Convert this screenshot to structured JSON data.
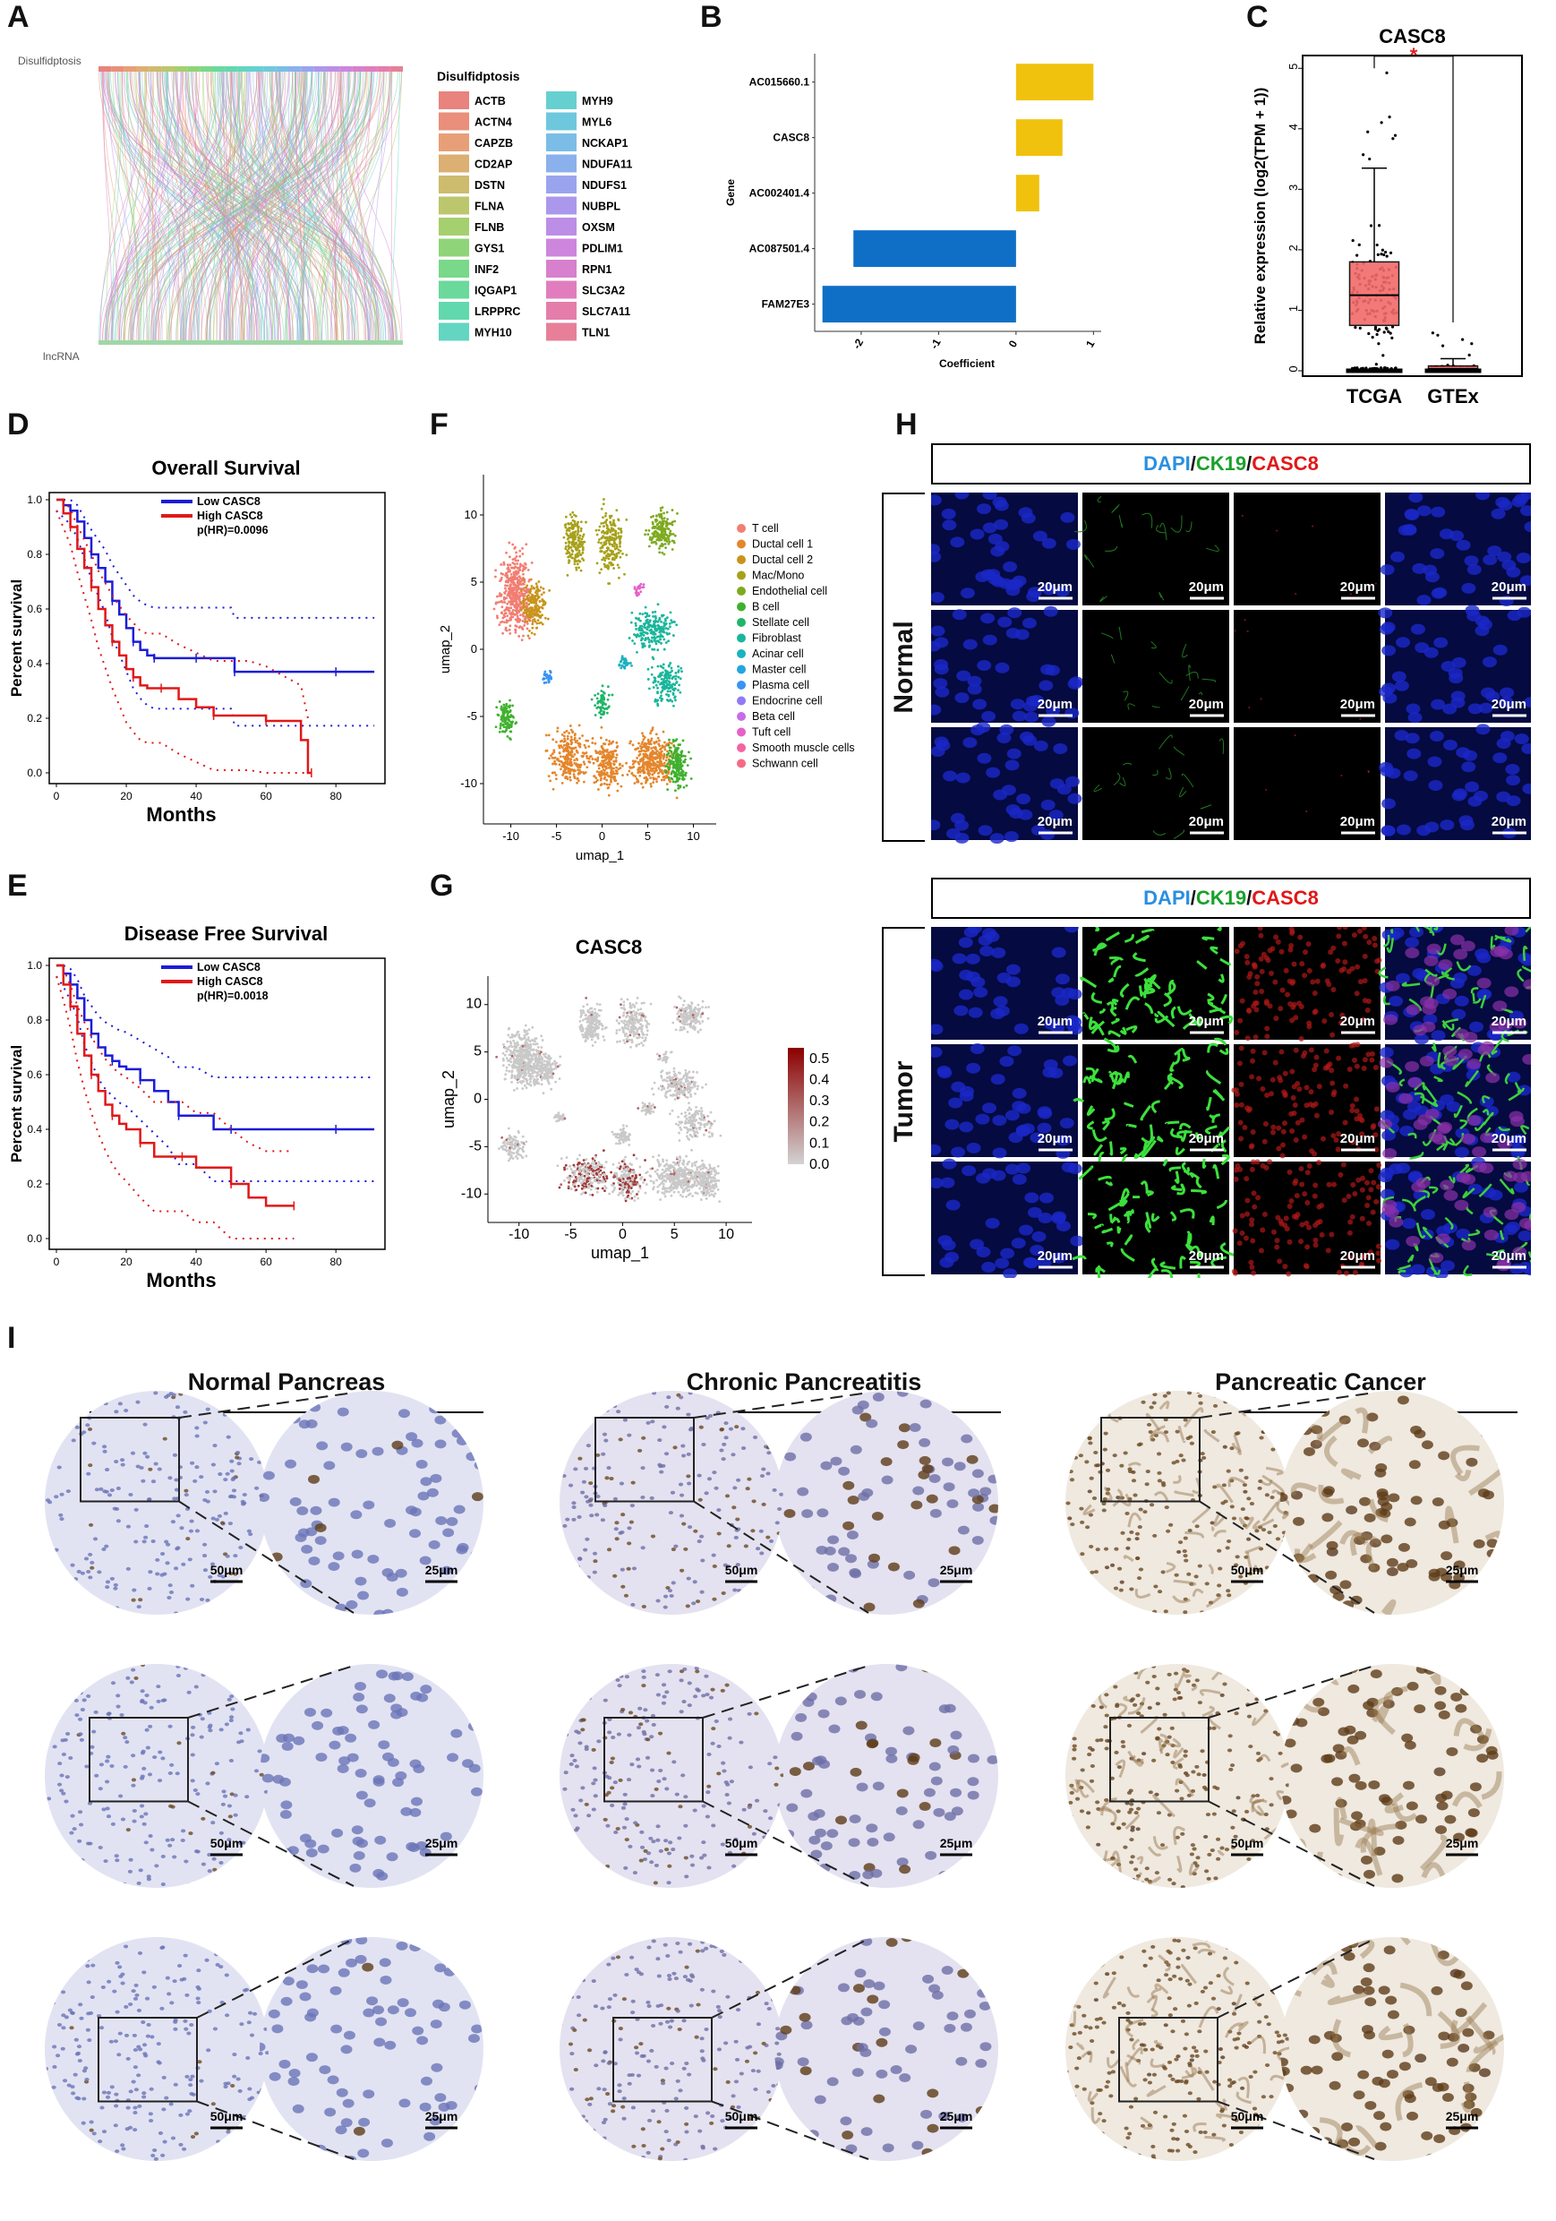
{
  "panels": {
    "A": "A",
    "B": "B",
    "C": "C",
    "D": "D",
    "E": "E",
    "F": "F",
    "G": "G",
    "H": "H",
    "I": "I"
  },
  "panelA": {
    "top_label": "Disulfidptosis",
    "bottom_label": "lncRNA",
    "legend_title": "Disulfidptosis",
    "legend_col1": [
      "ACTB",
      "ACTN4",
      "CAPZB",
      "CD2AP",
      "DSTN",
      "FLNA",
      "FLNB",
      "GYS1",
      "INF2",
      "IQGAP1",
      "LRPPRC",
      "MYH10"
    ],
    "legend_col2": [
      "MYH9",
      "MYL6",
      "NCKAP1",
      "NDUFA11",
      "NDUFS1",
      "NUBPL",
      "OXSM",
      "PDLIM1",
      "RPN1",
      "SLC3A2",
      "SLC7A11",
      "TLN1"
    ],
    "colors_col1": [
      "#e8837e",
      "#e98f7b",
      "#e79f78",
      "#dcaf72",
      "#cdbb6e",
      "#bcc66c",
      "#a6cf6f",
      "#8fd479",
      "#79d889",
      "#6ad99b",
      "#62d8ae",
      "#63d5c1"
    ],
    "colors_col2": [
      "#66d0d1",
      "#6ec8dd",
      "#7bbde6",
      "#8ab1ec",
      "#9aa4ee",
      "#ab98ec",
      "#bc8ee6",
      "#cc86dc",
      "#d880cd",
      "#e17dbd",
      "#e57dab",
      "#e77f98"
    ]
  },
  "panelB": {
    "chart_data": {
      "type": "bar",
      "orientation": "horizontal",
      "categories": [
        "AC015660.1",
        "CASC8",
        "AC002401.4",
        "AC087501.4",
        "FAM27E3"
      ],
      "values": [
        1.0,
        0.6,
        0.3,
        -2.1,
        -2.5
      ],
      "xlabel": "Coefficient",
      "ylabel": "Gene",
      "xticks": [
        "-2",
        "-1",
        "0",
        "1"
      ],
      "xlim": [
        -2.6,
        1.1
      ],
      "positive_color": "#f0c20e",
      "negative_color": "#0f6fc6"
    }
  },
  "panelC": {
    "chart_data": {
      "type": "box",
      "title": "CASC8",
      "categories": [
        "TCGA",
        "GTEx"
      ],
      "ylabel": "Relative expression (log2(TPM + 1))",
      "yticks": [
        "0",
        "1",
        "2",
        "3",
        "4",
        "5"
      ],
      "ylim": [
        0,
        5.3
      ],
      "boxes": [
        {
          "name": "TCGA",
          "q1": 0.75,
          "median": 1.25,
          "q3": 1.8,
          "whisker_high": 3.35,
          "whisker_low": 0.0,
          "color": "#f26b6b"
        },
        {
          "name": "GTEx",
          "q1": 0.0,
          "median": 0.03,
          "q3": 0.08,
          "whisker_high": 0.2,
          "whisker_low": 0.0,
          "color": "#f26b6b"
        }
      ],
      "significance": "*",
      "significance_color": "#e02020"
    }
  },
  "panelD": {
    "chart_data": {
      "type": "line",
      "title": "Overall Survival",
      "xlabel": "Months",
      "ylabel": "Percent survival",
      "xticks": [
        "0",
        "20",
        "40",
        "60",
        "80"
      ],
      "yticks": [
        "0.0",
        "0.2",
        "0.4",
        "0.6",
        "0.8",
        "1.0"
      ],
      "xlim": [
        0,
        92
      ],
      "ylim": [
        0,
        1.0
      ],
      "series": [
        {
          "name": "Low CASC8",
          "color": "#1c1cd8",
          "x": [
            0,
            2,
            4,
            6,
            8,
            10,
            12,
            14,
            16,
            18,
            20,
            22,
            24,
            26,
            28,
            30,
            35,
            40,
            45,
            50,
            51,
            60,
            70,
            80,
            91
          ],
          "y": [
            1.0,
            0.98,
            0.96,
            0.92,
            0.86,
            0.8,
            0.75,
            0.7,
            0.63,
            0.58,
            0.53,
            0.48,
            0.45,
            0.43,
            0.42,
            0.42,
            0.42,
            0.42,
            0.42,
            0.42,
            0.37,
            0.37,
            0.37,
            0.37,
            0.37
          ]
        },
        {
          "name": "High CASC8",
          "color": "#e01818",
          "x": [
            0,
            2,
            4,
            6,
            8,
            10,
            12,
            14,
            16,
            18,
            20,
            22,
            24,
            26,
            30,
            35,
            40,
            45,
            50,
            55,
            60,
            70,
            72,
            73
          ],
          "y": [
            1.0,
            0.95,
            0.9,
            0.82,
            0.75,
            0.68,
            0.6,
            0.54,
            0.48,
            0.43,
            0.38,
            0.35,
            0.32,
            0.31,
            0.31,
            0.27,
            0.24,
            0.21,
            0.21,
            0.21,
            0.19,
            0.12,
            0.0,
            0.0
          ]
        }
      ],
      "annotation": "p(HR)=0.0096"
    }
  },
  "panelE": {
    "chart_data": {
      "type": "line",
      "title": "Disease Free Survival",
      "xlabel": "Months",
      "ylabel": "Percent survival",
      "xticks": [
        "0",
        "20",
        "40",
        "60",
        "80"
      ],
      "yticks": [
        "0.0",
        "0.2",
        "0.4",
        "0.6",
        "0.8",
        "1.0"
      ],
      "xlim": [
        0,
        92
      ],
      "ylim": [
        0,
        1.0
      ],
      "series": [
        {
          "name": "Low CASC8",
          "color": "#1c1cd8",
          "x": [
            0,
            2,
            4,
            6,
            8,
            10,
            12,
            14,
            16,
            18,
            20,
            24,
            28,
            32,
            35,
            40,
            45,
            50,
            60,
            70,
            80,
            91
          ],
          "y": [
            1.0,
            0.97,
            0.93,
            0.88,
            0.8,
            0.75,
            0.7,
            0.67,
            0.65,
            0.63,
            0.62,
            0.58,
            0.54,
            0.5,
            0.45,
            0.45,
            0.4,
            0.4,
            0.4,
            0.4,
            0.4,
            0.4
          ]
        },
        {
          "name": "High CASC8",
          "color": "#e01818",
          "x": [
            0,
            2,
            4,
            6,
            8,
            10,
            12,
            14,
            16,
            18,
            20,
            24,
            28,
            32,
            36,
            40,
            45,
            50,
            55,
            60,
            68
          ],
          "y": [
            1.0,
            0.93,
            0.85,
            0.75,
            0.67,
            0.6,
            0.54,
            0.49,
            0.45,
            0.42,
            0.4,
            0.35,
            0.3,
            0.3,
            0.3,
            0.26,
            0.26,
            0.2,
            0.15,
            0.12,
            0.12
          ]
        }
      ],
      "annotation": "p(HR)=0.0018"
    }
  },
  "panelF": {
    "chart_data": {
      "type": "scatter",
      "xlabel": "umap_1",
      "ylabel": "umap_2",
      "xticks": [
        "-10",
        "-5",
        "0",
        "5",
        "10"
      ],
      "yticks": [
        "-10",
        "-5",
        "0",
        "5",
        "10"
      ],
      "xlim": [
        -13,
        12.5
      ],
      "ylim": [
        -13,
        13
      ],
      "legend": [
        {
          "name": "T cell",
          "color": "#f27e73"
        },
        {
          "name": "Ductal cell 1",
          "color": "#e4862c"
        },
        {
          "name": "Ductal cell 2",
          "color": "#c8941a"
        },
        {
          "name": "Mac/Mono",
          "color": "#a7a11a"
        },
        {
          "name": "Endothelial cell",
          "color": "#7eaa20"
        },
        {
          "name": "B cell",
          "color": "#3fb12e"
        },
        {
          "name": "Stellate cell",
          "color": "#20b569"
        },
        {
          "name": "Fibroblast",
          "color": "#19b69b"
        },
        {
          "name": "Acinar cell",
          "color": "#1bb2bf"
        },
        {
          "name": "Master cell",
          "color": "#22a6e0"
        },
        {
          "name": "Plasma cell",
          "color": "#3a93f2"
        },
        {
          "name": "Endocrine cell",
          "color": "#8f7bf5"
        },
        {
          "name": "Beta cell",
          "color": "#c66ce8"
        },
        {
          "name": "Tuft cell",
          "color": "#e561c8"
        },
        {
          "name": "Smooth muscle cells",
          "color": "#f264a2"
        },
        {
          "name": "Schwann cell",
          "color": "#f46b85"
        }
      ]
    }
  },
  "panelG": {
    "chart_data": {
      "type": "scatter",
      "title": "CASC8",
      "xlabel": "umap_1",
      "ylabel": "umap_2",
      "xticks": [
        "-10",
        "-5",
        "0",
        "5",
        "10"
      ],
      "yticks": [
        "-10",
        "-5",
        "0",
        "5",
        "10"
      ],
      "colorbar_ticks": [
        "0.0",
        "0.1",
        "0.2",
        "0.3",
        "0.4",
        "0.5"
      ],
      "colorbar_range": [
        0,
        0.55
      ],
      "colorbar_low": "#d3d3d3",
      "colorbar_high": "#8b0000"
    }
  },
  "panelH": {
    "header_dapi": "DAPI",
    "header_slash1": "/",
    "header_ck19": "CK19",
    "header_slash2": "/",
    "header_casc8": "CASC8",
    "dapi_color": "#2a8fe0",
    "ck19_color": "#1aa02a",
    "casc8_color": "#e01818",
    "normal_label": "Normal",
    "tumor_label": "Tumor",
    "scale": "20μm"
  },
  "panelI": {
    "groups": [
      "Normal Pancreas",
      "Chronic Pancreatitis",
      "Pancreatic Cancer"
    ],
    "scale_big": "50μm",
    "scale_small": "25μm"
  }
}
